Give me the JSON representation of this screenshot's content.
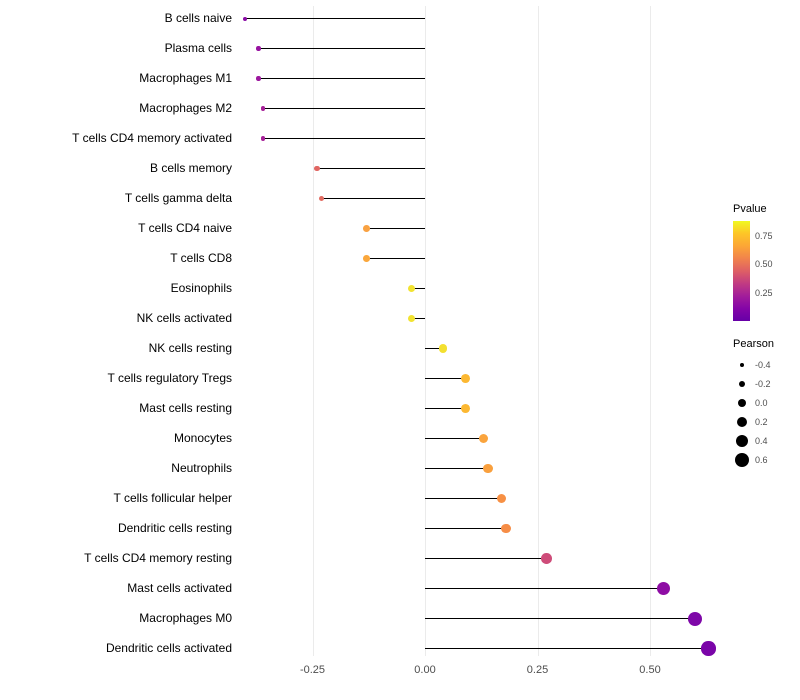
{
  "chart_data": {
    "type": "lollipop",
    "title": "",
    "xlabel": "",
    "ylabel": "",
    "xlim": [
      -0.47,
      0.72
    ],
    "grid": "vertical-major-only",
    "legend_position": "right",
    "x_ticks": [
      {
        "value": -0.25,
        "label": "-0.25"
      },
      {
        "value": 0.0,
        "label": "0.00"
      },
      {
        "value": 0.25,
        "label": "0.25"
      },
      {
        "value": 0.5,
        "label": "0.50"
      }
    ],
    "points": [
      {
        "label": "B cells naive",
        "pearson": -0.4,
        "pvalue": 0.06,
        "color": "#8A0BA5"
      },
      {
        "label": "Plasma cells",
        "pearson": -0.37,
        "pvalue": 0.09,
        "color": "#9712A0"
      },
      {
        "label": "Macrophages M1",
        "pearson": -0.37,
        "pvalue": 0.1,
        "color": "#9C179E"
      },
      {
        "label": "Macrophages M2",
        "pearson": -0.36,
        "pvalue": 0.11,
        "color": "#A62098"
      },
      {
        "label": "T cells CD4 memory activated",
        "pearson": -0.36,
        "pvalue": 0.11,
        "color": "#A62098"
      },
      {
        "label": "B cells memory",
        "pearson": -0.24,
        "pvalue": 0.45,
        "color": "#E06662"
      },
      {
        "label": "T cells gamma delta",
        "pearson": -0.23,
        "pvalue": 0.46,
        "color": "#E26B61"
      },
      {
        "label": "T cells CD4 naive",
        "pearson": -0.13,
        "pvalue": 0.62,
        "color": "#F9A242"
      },
      {
        "label": "T cells CD8",
        "pearson": -0.13,
        "pvalue": 0.64,
        "color": "#FAA73C"
      },
      {
        "label": "Eosinophils",
        "pearson": -0.03,
        "pvalue": 0.84,
        "color": "#F2E331"
      },
      {
        "label": "NK cells activated",
        "pearson": -0.03,
        "pvalue": 0.84,
        "color": "#F2E331"
      },
      {
        "label": "NK cells resting",
        "pearson": 0.04,
        "pvalue": 0.8,
        "color": "#F3E030"
      },
      {
        "label": "T cells regulatory Tregs",
        "pearson": 0.09,
        "pvalue": 0.7,
        "color": "#FCB832"
      },
      {
        "label": "Mast cells resting",
        "pearson": 0.09,
        "pvalue": 0.7,
        "color": "#FCB832"
      },
      {
        "label": "Monocytes",
        "pearson": 0.13,
        "pvalue": 0.63,
        "color": "#FAA43D"
      },
      {
        "label": "Neutrophils",
        "pearson": 0.14,
        "pvalue": 0.61,
        "color": "#F9A03E"
      },
      {
        "label": "T cells follicular helper",
        "pearson": 0.17,
        "pvalue": 0.55,
        "color": "#F79044"
      },
      {
        "label": "Dendritic cells resting",
        "pearson": 0.18,
        "pvalue": 0.54,
        "color": "#F68D46"
      },
      {
        "label": "T cells CD4 memory resting",
        "pearson": 0.27,
        "pvalue": 0.3,
        "color": "#CE4C79"
      },
      {
        "label": "Mast cells activated",
        "pearson": 0.53,
        "pvalue": 0.07,
        "color": "#8E0DA4"
      },
      {
        "label": "Macrophages M0",
        "pearson": 0.6,
        "pvalue": 0.04,
        "color": "#7E07A8"
      },
      {
        "label": "Dendritic cells activated",
        "pearson": 0.63,
        "pvalue": 0.03,
        "color": "#7A05A8"
      }
    ],
    "legend": {
      "pvalue_title": "Pvalue",
      "pvalue_range": [
        0,
        0.88
      ],
      "pvalue_ticks": [
        {
          "value": 0.75,
          "label": "0.75"
        },
        {
          "value": 0.5,
          "label": "0.50"
        },
        {
          "value": 0.25,
          "label": "0.25"
        }
      ],
      "pvalue_gradient_top_to_bottom": [
        "#F0F921",
        "#FDC527",
        "#FCA636",
        "#F1834C",
        "#DE5F65",
        "#C13B82",
        "#A21D9A",
        "#8405A7",
        "#6600A7"
      ],
      "pearson_title": "Pearson",
      "pearson_ticks": [
        {
          "value": -0.4,
          "label": "-0.4"
        },
        {
          "value": -0.2,
          "label": "-0.2"
        },
        {
          "value": 0.0,
          "label": "0.0"
        },
        {
          "value": 0.2,
          "label": "0.2"
        },
        {
          "value": 0.4,
          "label": "0.4"
        },
        {
          "value": 0.6,
          "label": "0.6"
        }
      ]
    },
    "style": {
      "stem_color": "#000000",
      "gridline_color": "#EBEBEB",
      "axis_text_color": "#4D4D4D",
      "label_text_color": "#000000",
      "background": "#FFFFFF"
    }
  }
}
